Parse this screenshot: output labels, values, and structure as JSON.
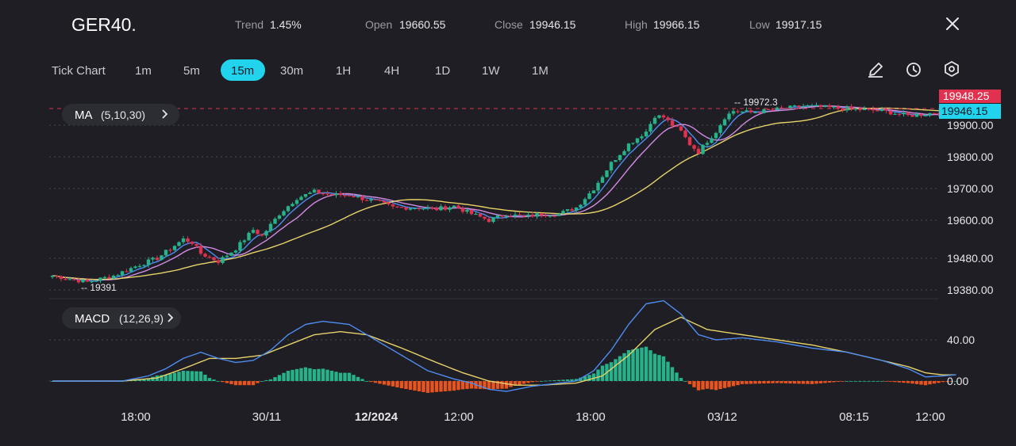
{
  "header": {
    "symbol": "GER40.",
    "trend_label": "Trend",
    "trend_value": "1.45%",
    "open_label": "Open",
    "open_value": "19660.55",
    "close_label": "Close",
    "close_value": "19946.15",
    "high_label": "High",
    "high_value": "19966.15",
    "low_label": "Low",
    "low_value": "19917.15"
  },
  "timeframes": {
    "items": [
      "Tick Chart",
      "1m",
      "5m",
      "15m",
      "30m",
      "1H",
      "4H",
      "1D",
      "1W",
      "1M"
    ],
    "selected": "15m"
  },
  "toolbar_icons": [
    "pencil-icon",
    "clock-icon",
    "settings-icon",
    "close-icon"
  ],
  "indicators": {
    "ma_label": "MA",
    "ma_params": "(5,10,30)",
    "macd_label": "MACD",
    "macd_params": "(12,26,9)"
  },
  "colors": {
    "background": "#1e1e24",
    "up": "#26b28a",
    "down": "#e0324f",
    "ma5": "#4f8cf0",
    "ma10": "#d38be4",
    "ma30": "#e7d36a",
    "macd_line": "#4f8cf0",
    "signal_line": "#e7d36a",
    "hist_pos": "#26b28a",
    "hist_neg": "#e8541e",
    "selected_tab": "#22d3ee",
    "price_tag_red": "#e0324f",
    "price_tag_cyan": "#22d3ee"
  },
  "chart_data": [
    {
      "type": "candlestick",
      "title": "GER40.",
      "y_ticks": [
        "19900.00",
        "19800.00",
        "19700.00",
        "19600.00",
        "19480.00",
        "19380.00"
      ],
      "ylim": [
        19360,
        20000
      ],
      "x_ticks": [
        "18:00",
        "30/11",
        "12/2024",
        "12:00",
        "18:00",
        "03/12",
        "08:15",
        "12:00"
      ],
      "grid": true,
      "annotations": {
        "high_marker": "19972.3",
        "low_marker": "19391"
      },
      "price_tags": {
        "red": "19948.25",
        "cyan": "19946.15"
      },
      "close_path": [
        [
          0,
          19425
        ],
        [
          8,
          19405
        ],
        [
          14,
          19425
        ],
        [
          20,
          19460
        ],
        [
          24,
          19480
        ],
        [
          30,
          19540
        ],
        [
          32,
          19530
        ],
        [
          34,
          19495
        ],
        [
          38,
          19470
        ],
        [
          42,
          19510
        ],
        [
          46,
          19570
        ],
        [
          48,
          19550
        ],
        [
          52,
          19620
        ],
        [
          56,
          19670
        ],
        [
          60,
          19690
        ],
        [
          64,
          19680
        ],
        [
          68,
          19680
        ],
        [
          72,
          19665
        ],
        [
          74,
          19660
        ],
        [
          78,
          19640
        ],
        [
          84,
          19640
        ],
        [
          88,
          19635
        ],
        [
          92,
          19645
        ],
        [
          96,
          19620
        ],
        [
          100,
          19600
        ],
        [
          104,
          19620
        ],
        [
          108,
          19610
        ],
        [
          112,
          19620
        ],
        [
          116,
          19620
        ],
        [
          120,
          19640
        ],
        [
          124,
          19700
        ],
        [
          128,
          19780
        ],
        [
          132,
          19840
        ],
        [
          136,
          19880
        ],
        [
          138,
          19930
        ],
        [
          140,
          19925
        ],
        [
          142,
          19900
        ],
        [
          144,
          19880
        ],
        [
          146,
          19840
        ],
        [
          148,
          19815
        ],
        [
          150,
          19850
        ],
        [
          152,
          19880
        ],
        [
          154,
          19925
        ],
        [
          156,
          19945
        ],
        [
          160,
          19940
        ],
        [
          166,
          19950
        ],
        [
          172,
          19960
        ],
        [
          178,
          19955
        ],
        [
          184,
          19950
        ],
        [
          190,
          19945
        ],
        [
          196,
          19930
        ],
        [
          200,
          19935
        ],
        [
          204,
          19945
        ],
        [
          207,
          19946
        ]
      ]
    },
    {
      "type": "macd",
      "title": "MACD",
      "y_ticks": [
        "40.00",
        "0.00"
      ],
      "zero_line": 0,
      "macd_path": [
        [
          0,
          0
        ],
        [
          16,
          0
        ],
        [
          22,
          5
        ],
        [
          26,
          12
        ],
        [
          30,
          22
        ],
        [
          34,
          28
        ],
        [
          38,
          22
        ],
        [
          42,
          18
        ],
        [
          46,
          20
        ],
        [
          50,
          30
        ],
        [
          54,
          45
        ],
        [
          58,
          55
        ],
        [
          62,
          58
        ],
        [
          68,
          55
        ],
        [
          74,
          40
        ],
        [
          80,
          25
        ],
        [
          86,
          10
        ],
        [
          92,
          2
        ],
        [
          96,
          -2
        ],
        [
          100,
          -8
        ],
        [
          104,
          -10
        ],
        [
          110,
          -5
        ],
        [
          116,
          -2
        ],
        [
          120,
          0
        ],
        [
          124,
          10
        ],
        [
          128,
          30
        ],
        [
          132,
          55
        ],
        [
          136,
          75
        ],
        [
          140,
          78
        ],
        [
          144,
          65
        ],
        [
          148,
          45
        ],
        [
          152,
          40
        ],
        [
          158,
          42
        ],
        [
          166,
          38
        ],
        [
          174,
          32
        ],
        [
          182,
          28
        ],
        [
          190,
          20
        ],
        [
          196,
          12
        ],
        [
          200,
          4
        ],
        [
          204,
          5
        ],
        [
          207,
          6
        ]
      ],
      "signal_path": [
        [
          0,
          0
        ],
        [
          16,
          0
        ],
        [
          24,
          3
        ],
        [
          30,
          12
        ],
        [
          36,
          22
        ],
        [
          42,
          22
        ],
        [
          48,
          25
        ],
        [
          54,
          35
        ],
        [
          60,
          45
        ],
        [
          66,
          48
        ],
        [
          72,
          45
        ],
        [
          80,
          32
        ],
        [
          88,
          18
        ],
        [
          94,
          8
        ],
        [
          100,
          0
        ],
        [
          106,
          -4
        ],
        [
          112,
          -4
        ],
        [
          120,
          -2
        ],
        [
          126,
          5
        ],
        [
          132,
          25
        ],
        [
          138,
          50
        ],
        [
          144,
          62
        ],
        [
          150,
          50
        ],
        [
          158,
          45
        ],
        [
          166,
          40
        ],
        [
          174,
          35
        ],
        [
          182,
          28
        ],
        [
          190,
          20
        ],
        [
          196,
          14
        ],
        [
          200,
          8
        ],
        [
          204,
          6
        ],
        [
          207,
          6
        ]
      ]
    }
  ]
}
